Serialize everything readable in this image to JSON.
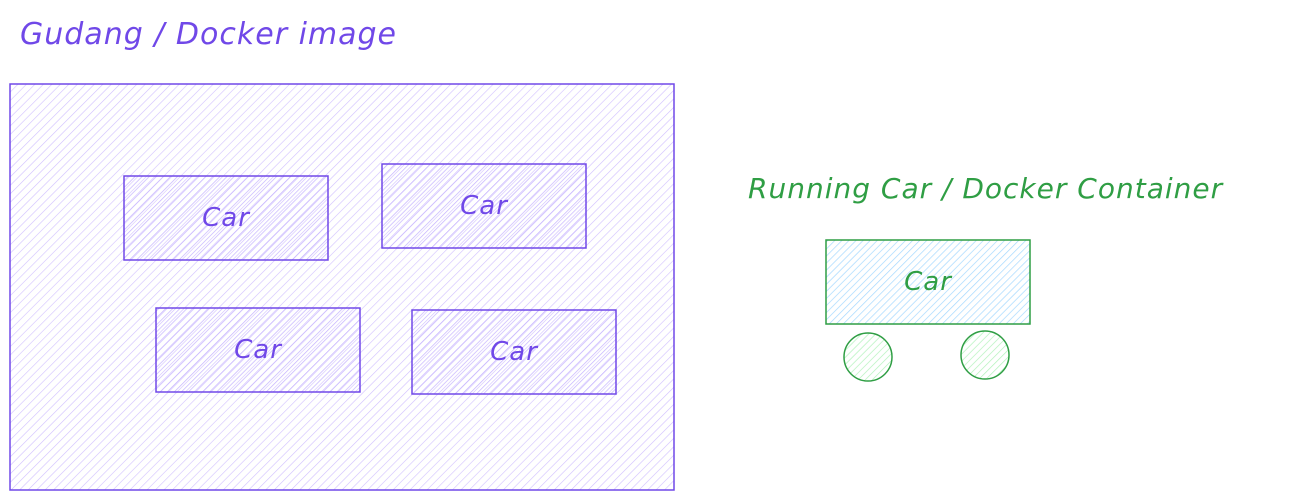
{
  "warehouse": {
    "title": "Gudang / Docker image",
    "cars": [
      {
        "label": "Car"
      },
      {
        "label": "Car"
      },
      {
        "label": "Car"
      },
      {
        "label": "Car"
      }
    ]
  },
  "running": {
    "title": "Running Car / Docker Container",
    "car": {
      "label": "Car"
    }
  },
  "colors": {
    "purple_stroke": "#7048e8",
    "purple_fill": "#d0bfff",
    "green_stroke": "#2f9e44",
    "green_fill": "#b2f2bb",
    "cyan_fill": "#a5d8ff"
  }
}
